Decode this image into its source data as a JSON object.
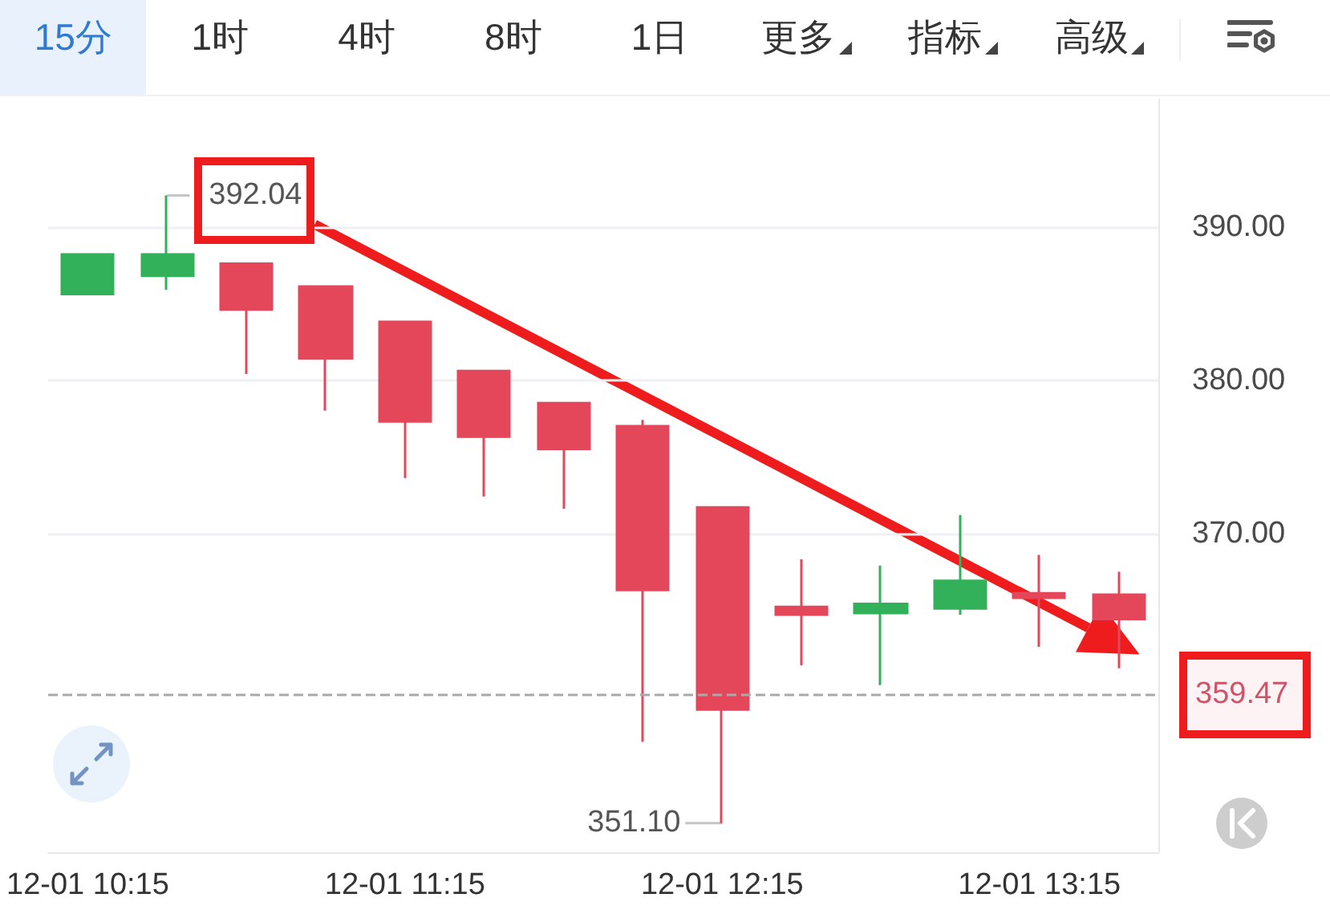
{
  "chart_data": {
    "type": "candlestick",
    "categories": [
      "12-01 10:15",
      null,
      null,
      null,
      "12-01 11:15",
      null,
      null,
      null,
      "12-01 12:15",
      null,
      null,
      null,
      "12-01 13:15",
      null
    ],
    "ohlc": [
      [
        385.6,
        388.2,
        385.6,
        388.2
      ],
      [
        386.8,
        392.04,
        385.9,
        388.2
      ],
      [
        387.6,
        387.6,
        380.4,
        384.6
      ],
      [
        386.1,
        386.1,
        378.0,
        381.4
      ],
      [
        383.8,
        383.8,
        373.6,
        377.3
      ],
      [
        380.6,
        380.6,
        372.4,
        376.3
      ],
      [
        378.5,
        378.5,
        371.6,
        375.5
      ],
      [
        377.0,
        377.4,
        356.4,
        366.3
      ],
      [
        371.7,
        371.7,
        351.1,
        358.5
      ],
      [
        365.2,
        368.3,
        361.4,
        364.7
      ],
      [
        364.8,
        367.9,
        360.1,
        365.4
      ],
      [
        365.1,
        371.2,
        364.7,
        366.9
      ],
      [
        366.1,
        368.6,
        362.6,
        365.8
      ],
      [
        366.0,
        367.5,
        361.2,
        364.4
      ]
    ],
    "colors": [
      "#33b05a",
      "#33b05a",
      "#e4475a",
      "#e4475a",
      "#e4475a",
      "#e4475a",
      "#e4475a",
      "#e4475a",
      "#e4475a",
      "#e4475a",
      "#33b05a",
      "#33b05a",
      "#e4475a",
      "#e4475a"
    ],
    "ylim": [
      349.2,
      398.3
    ],
    "yticks": [
      {
        "value": 370,
        "label": "370.00"
      },
      {
        "value": 380,
        "label": "380.00"
      },
      {
        "value": 390,
        "label": "390.00"
      }
    ],
    "grid": "y",
    "ref_lines": [
      {
        "axis": "y",
        "value": 359.47,
        "label": "359.47",
        "color": "#a9a9a9",
        "line_style": "dashed"
      }
    ],
    "annotations": [
      "15分",
      "1时",
      "4时",
      "8时",
      "1日",
      "更多",
      "指标",
      "高级",
      "392.04",
      "351.10"
    ]
  }
}
